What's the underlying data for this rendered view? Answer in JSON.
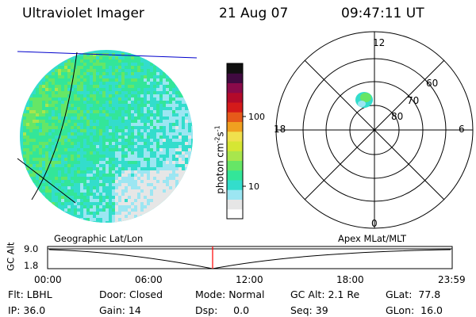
{
  "header": {
    "instrument": "Ultraviolet Imager",
    "date": "21 Aug 07",
    "time": "09:47:11 UT"
  },
  "colorbar": {
    "unit_label": "photon cm",
    "unit_exp1": "-2",
    "unit_mid": "s",
    "unit_exp2": "-1",
    "tick_100": "100",
    "tick_10": "10",
    "colors": [
      "#ffffff",
      "#e6e6e6",
      "#9ce6f2",
      "#33ddcc",
      "#33e699",
      "#66e666",
      "#a8e64d",
      "#d6e633",
      "#f0e04d",
      "#f0a020",
      "#e65a1a",
      "#d41a1a",
      "#b30a2a",
      "#8a0a4a",
      "#400a40",
      "#101010"
    ]
  },
  "polar_plot": {
    "label_top": "12",
    "label_left": "18",
    "label_right": "6",
    "label_bottom": "0",
    "label_60": "60",
    "label_70": "70",
    "label_80": "80"
  },
  "timeline": {
    "ylabel": "GC Alt",
    "y_top": "9.0",
    "y_bottom": "1.8",
    "left_label": "Geographic Lat/Lon",
    "right_label": "Apex MLat/MLT",
    "ticks": [
      "00:00",
      "06:00",
      "12:00",
      "18:00",
      "23:59"
    ],
    "marker_color": "#ff0000"
  },
  "info": {
    "flt": "Flt: LBHL",
    "door": "Door: Closed",
    "mode": "Mode: Normal",
    "gc_alt": "GC Alt: 2.1 Re",
    "glat": "GLat:  77.8",
    "ip": "IP: 36.0",
    "gain": "Gain: 14",
    "dsp": "Dsp:     0.0",
    "seq": "Seq: 39",
    "glon": "GLon:  16.0"
  }
}
